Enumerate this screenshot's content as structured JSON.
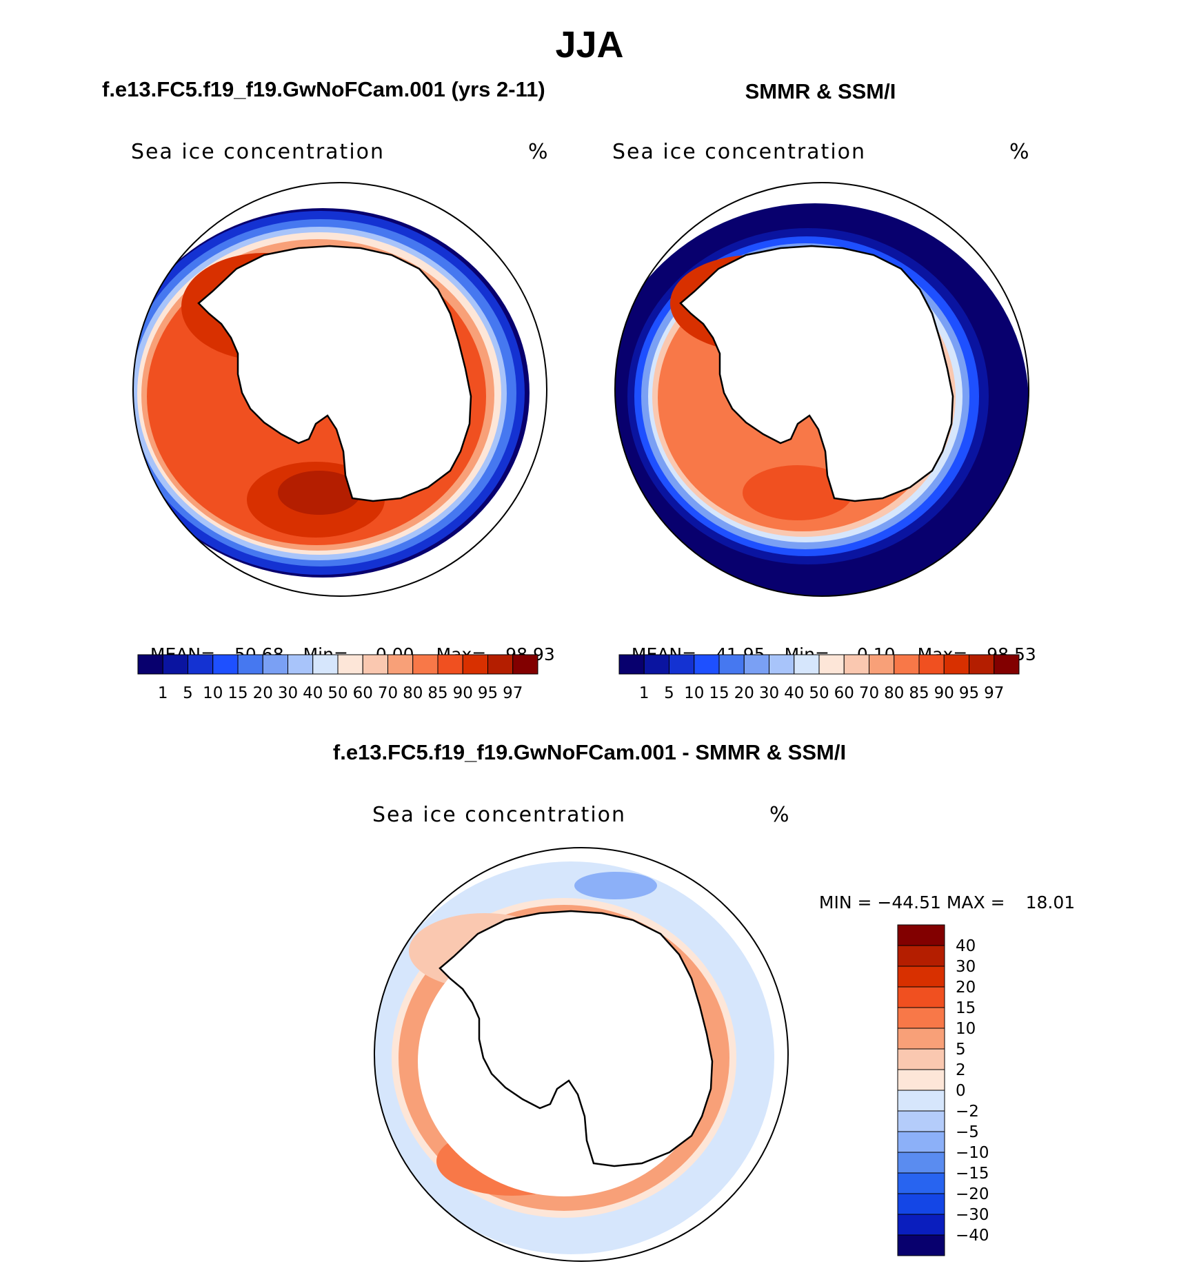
{
  "season_title": "JJA",
  "colors": {
    "seq_scale": [
      "#08006e",
      "#0a14a0",
      "#1432d2",
      "#1e50ff",
      "#4678f0",
      "#7aa0f4",
      "#a8c4fa",
      "#d6e6fc",
      "#fde6d8",
      "#fac8b0",
      "#f8a078",
      "#f87848",
      "#f05020",
      "#d83000",
      "#b41e00",
      "#820000"
    ],
    "div_scale": [
      "#08006e",
      "#0a1ebe",
      "#1446e6",
      "#2864f0",
      "#5a8cf0",
      "#8cb0f8",
      "#b4ccfa",
      "#d6e6fc",
      "#fde6d8",
      "#fac8b0",
      "#f8a078",
      "#f87848",
      "#f05020",
      "#d83000",
      "#b41e00",
      "#820000"
    ],
    "land": "#ffffff",
    "coast": "#000000"
  },
  "panels": [
    {
      "id": "model",
      "title": "f.e13.FC5.f19_f19.GwNoFCam.001 (yrs 2-11)",
      "field_label": "Sea ice concentration",
      "units": "%",
      "stats": {
        "mean_label": "MEAN=",
        "mean": "50.68",
        "min_label": "Min=",
        "min": "0.00",
        "max_label": "Max=",
        "max": "98.93"
      },
      "colorbar_labels": [
        "1",
        "5",
        "10",
        "15",
        "20",
        "30",
        "40",
        "50",
        "60",
        "70",
        "80",
        "85",
        "90",
        "95",
        "97"
      ]
    },
    {
      "id": "obs",
      "title": "SMMR & SSM/I",
      "field_label": "Sea ice concentration",
      "units": "%",
      "stats": {
        "mean_label": "MEAN=",
        "mean": "41.95",
        "min_label": "Min=",
        "min": "0.10",
        "max_label": "Max=",
        "max": "98.53"
      },
      "colorbar_labels": [
        "1",
        "5",
        "10",
        "15",
        "20",
        "30",
        "40",
        "50",
        "60",
        "70",
        "80",
        "85",
        "90",
        "95",
        "97"
      ]
    }
  ],
  "diff_panel": {
    "title": "f.e13.FC5.f19_f19.GwNoFCam.001 - SMMR & SSM/I",
    "field_label": "Sea ice concentration",
    "units": "%",
    "min_label": "MIN =",
    "min": "−44.51",
    "max_label": "MAX =",
    "max": "18.01",
    "colorbar_labels": [
      "40",
      "30",
      "20",
      "15",
      "10",
      "5",
      "2",
      "0",
      "−2",
      "−5",
      "−10",
      "−15",
      "−20",
      "−30",
      "−40"
    ]
  }
}
